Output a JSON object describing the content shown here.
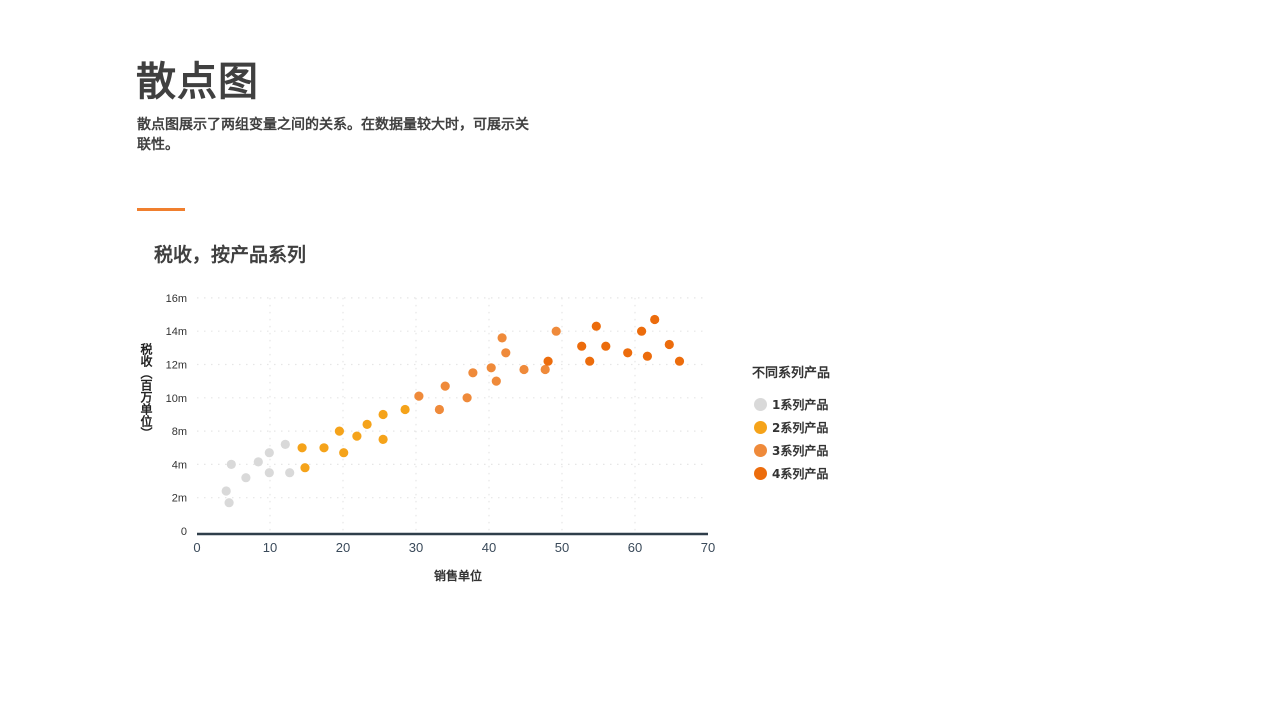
{
  "header": {
    "title": "散点图",
    "description": "散点图展示了两组变量之间的关系。在数据量较大时，可展示关联性。",
    "accent_color": "#f07f2e"
  },
  "chart_data": {
    "type": "scatter",
    "title": "税收，按产品系列",
    "xlabel": "销售单位",
    "ylabel": "税收（百万单位）",
    "xlim": [
      0,
      70
    ],
    "x_ticks": [
      "0",
      "10",
      "20",
      "30",
      "40",
      "50",
      "60",
      "70"
    ],
    "y_ticks": [
      "0",
      "2m",
      "4m",
      "8m",
      "10m",
      "12m",
      "14m",
      "16m"
    ],
    "grid": true,
    "legend_title": "不同系列产品",
    "legend_position": "right",
    "series": [
      {
        "name": "1系列产品",
        "color": "#d9d9d9",
        "points": [
          [
            4.0,
            2.4
          ],
          [
            4.4,
            1.7
          ],
          [
            4.7,
            4.0
          ],
          [
            6.7,
            3.2
          ],
          [
            8.4,
            4.3
          ],
          [
            9.9,
            5.4
          ],
          [
            9.9,
            3.5
          ],
          [
            12.1,
            6.4
          ],
          [
            12.7,
            3.5
          ]
        ]
      },
      {
        "name": "2系列产品",
        "color": "#f5a31a",
        "points": [
          [
            14.4,
            6.0
          ],
          [
            14.8,
            3.8
          ],
          [
            17.4,
            6.0
          ],
          [
            19.5,
            8.0
          ],
          [
            20.1,
            5.4
          ],
          [
            21.9,
            7.4
          ],
          [
            23.3,
            8.4
          ],
          [
            25.5,
            9.0
          ],
          [
            25.5,
            7.0
          ],
          [
            28.5,
            9.3
          ]
        ]
      },
      {
        "name": "3系列产品",
        "color": "#ef8a3a",
        "points": [
          [
            30.4,
            10.1
          ],
          [
            33.2,
            9.3
          ],
          [
            34.0,
            10.7
          ],
          [
            37.0,
            10.0
          ],
          [
            37.8,
            11.5
          ],
          [
            40.3,
            11.8
          ],
          [
            41.0,
            11.0
          ],
          [
            41.8,
            13.6
          ],
          [
            42.3,
            12.7
          ],
          [
            44.8,
            11.7
          ],
          [
            47.7,
            11.7
          ],
          [
            49.2,
            14.0
          ]
        ]
      },
      {
        "name": "4系列产品",
        "color": "#ec6c0c",
        "points": [
          [
            48.1,
            12.2
          ],
          [
            52.7,
            13.1
          ],
          [
            53.8,
            12.2
          ],
          [
            54.7,
            14.3
          ],
          [
            56.0,
            13.1
          ],
          [
            59.0,
            12.7
          ],
          [
            60.9,
            14.0
          ],
          [
            61.7,
            12.5
          ],
          [
            62.7,
            14.7
          ],
          [
            64.7,
            13.2
          ],
          [
            66.1,
            12.2
          ]
        ]
      }
    ]
  }
}
